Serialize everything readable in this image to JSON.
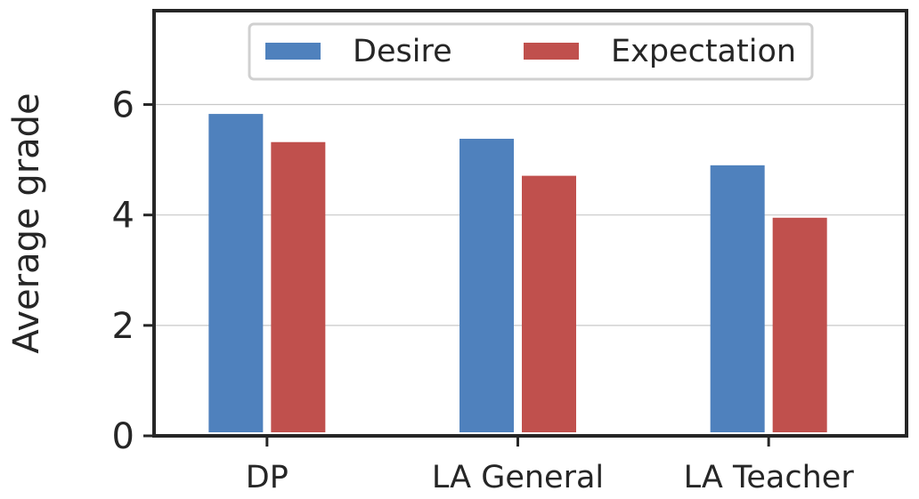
{
  "chart_data": {
    "type": "bar",
    "categories": [
      "DP",
      "LA General",
      "LA Teacher"
    ],
    "series": [
      {
        "name": "Desire",
        "values": [
          5.83,
          5.38,
          4.9
        ],
        "color": "#4f81bd"
      },
      {
        "name": "Expectation",
        "values": [
          5.32,
          4.71,
          3.95
        ],
        "color": "#c0504d"
      }
    ],
    "xlabel": "",
    "ylabel": "Average grade",
    "ylim": [
      0,
      7.7
    ],
    "yticks": [
      0,
      2,
      4,
      6
    ],
    "grid": "horizontal",
    "legend_position": "top-center"
  }
}
